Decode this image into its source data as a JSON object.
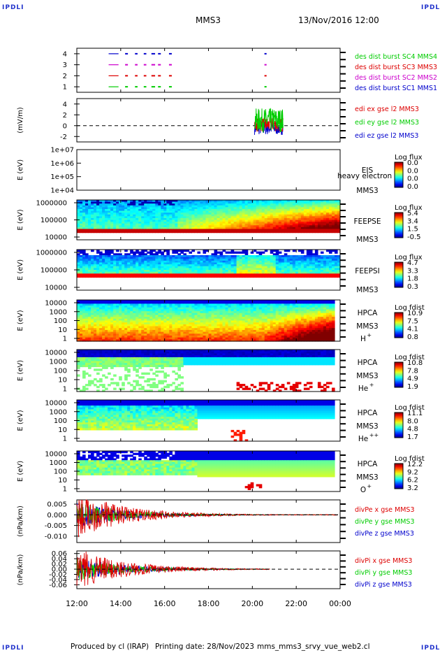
{
  "corners": {
    "tl": "IPDLI",
    "tr": "IPDLI",
    "bl": "IPDLI",
    "br": "IPDLI"
  },
  "header": {
    "spacecraft": "MMS3",
    "datetime": "13/Nov/2016 12:00"
  },
  "footer": {
    "produced": "Produced by cl (IRAP)",
    "printing": "Printing date: 28/Nov/2023",
    "file": "mms_mms3_srvy_vue_web2.cl"
  },
  "colors": {
    "red": "#dd0000",
    "green": "#00cc00",
    "blue": "#0000cc",
    "magenta": "#cc00cc",
    "orange": "#ee6600"
  },
  "chart_data": [
    {
      "id": "des-burst",
      "type": "scatter",
      "ylabel": "",
      "ylim": [
        0.5,
        4.5
      ],
      "yticks": [
        "1",
        "2",
        "3",
        "4"
      ],
      "series": [
        {
          "name": "des dist burst SC1 MMS1",
          "color": "#0000cc",
          "y": 4
        },
        {
          "name": "des dist burst SC2 MMS2",
          "color": "#cc00cc",
          "y": 3
        },
        {
          "name": "des dist burst SC3 MMS3",
          "color": "#dd0000",
          "y": 2
        },
        {
          "name": "des dist burst SC4 MMS4",
          "color": "#00cc00",
          "y": 1
        }
      ]
    },
    {
      "id": "edi",
      "type": "line",
      "ylabel": "(mV/m)",
      "ylim": [
        -3,
        5
      ],
      "yticks": [
        "-2",
        "0",
        "2",
        "4"
      ],
      "series": [
        {
          "name": "edi ex gse l2 MMS3",
          "color": "#dd0000"
        },
        {
          "name": "edi ey gse l2 MMS3",
          "color": "#00cc00"
        },
        {
          "name": "edi ez gse l2 MMS3",
          "color": "#0000cc"
        }
      ]
    },
    {
      "id": "eis",
      "type": "heatmap",
      "ylabel": "E (eV)",
      "yticks": [
        "1e+07",
        "1e+06",
        "1e+05",
        "1e+04"
      ],
      "inst": "EIS",
      "sub": "MMS3",
      "overlay": "heavy electron to",
      "cb_title": "Log flux",
      "cb_ticks": [
        "0.0",
        "0.0",
        "0.0",
        "0.0"
      ]
    },
    {
      "id": "feepse",
      "type": "heatmap",
      "ylabel": "E (eV)",
      "yticks": [
        "1000000",
        "100000",
        "10000"
      ],
      "inst": "FEEPSE",
      "sub": "MMS3",
      "cb_title": "Log flux",
      "cb_ticks": [
        "5.4",
        "3.4",
        "1.5",
        "-0.5"
      ]
    },
    {
      "id": "feepsi",
      "type": "heatmap",
      "ylabel": "E (eV)",
      "yticks": [
        "1000000",
        "100000",
        "10000"
      ],
      "inst": "FEEPSI",
      "sub": "MMS3",
      "cb_title": "Log flux",
      "cb_ticks": [
        "4.7",
        "3.3",
        "1.8",
        "0.3"
      ]
    },
    {
      "id": "hpca-h",
      "type": "heatmap",
      "ylabel": "E (eV)",
      "yticks": [
        "10000",
        "1000",
        "100",
        "10",
        "1"
      ],
      "inst": "HPCA",
      "sub": "MMS3",
      "species": "H",
      "charge": "+",
      "cb_title": "Log fdist",
      "cb_ticks": [
        "10.9",
        "7.5",
        "4.1",
        "0.8"
      ]
    },
    {
      "id": "hpca-he1",
      "type": "heatmap",
      "ylabel": "E (eV)",
      "yticks": [
        "10000",
        "1000",
        "100",
        "10",
        "1"
      ],
      "inst": "HPCA",
      "sub": "MMS3",
      "species": "He",
      "charge": "+",
      "cb_title": "Log fdist",
      "cb_ticks": [
        "10.8",
        "7.8",
        "4.9",
        "1.9"
      ]
    },
    {
      "id": "hpca-he2",
      "type": "heatmap",
      "ylabel": "E (eV)",
      "yticks": [
        "10000",
        "1000",
        "100",
        "10",
        "1"
      ],
      "inst": "HPCA",
      "sub": "MMS3",
      "species": "He",
      "charge": "++",
      "cb_title": "Log fdist",
      "cb_ticks": [
        "11.1",
        "8.0",
        "4.8",
        "1.7"
      ]
    },
    {
      "id": "hpca-o",
      "type": "heatmap",
      "ylabel": "E (eV)",
      "yticks": [
        "10000",
        "1000",
        "100",
        "10",
        "1"
      ],
      "inst": "HPCA",
      "sub": "MMS3",
      "species": "O",
      "charge": "+",
      "cb_title": "Log fdist",
      "cb_ticks": [
        "12.2",
        "9.2",
        "6.2",
        "3.2"
      ]
    },
    {
      "id": "divpe",
      "type": "line",
      "ylabel": "(nPa/km)",
      "ylim": [
        -0.013,
        0.007
      ],
      "yticks": [
        "0.005",
        "0.000",
        "-0.005",
        "-0.010"
      ],
      "series": [
        {
          "name": "divPe x gse MMS3",
          "color": "#dd0000"
        },
        {
          "name": "divPe y gse MMS3",
          "color": "#00cc00"
        },
        {
          "name": "divPe z gse MMS3",
          "color": "#0000cc"
        }
      ]
    },
    {
      "id": "divpi",
      "type": "line",
      "ylabel": "(nPa/km)",
      "ylim": [
        -0.075,
        0.07
      ],
      "yticks": [
        "0.06",
        "0.04",
        "0.02",
        "0.00",
        "-0.02",
        "-0.04",
        "-0.06"
      ],
      "series": [
        {
          "name": "divPi x gse MMS3",
          "color": "#dd0000"
        },
        {
          "name": "divPi y gse MMS3",
          "color": "#00cc00"
        },
        {
          "name": "divPi z gse MMS3",
          "color": "#0000cc"
        }
      ]
    }
  ],
  "xaxis": {
    "ticks": [
      "12:00",
      "14:00",
      "16:00",
      "18:00",
      "20:00",
      "22:00",
      "00:00"
    ],
    "range_hours": [
      12,
      24
    ]
  }
}
